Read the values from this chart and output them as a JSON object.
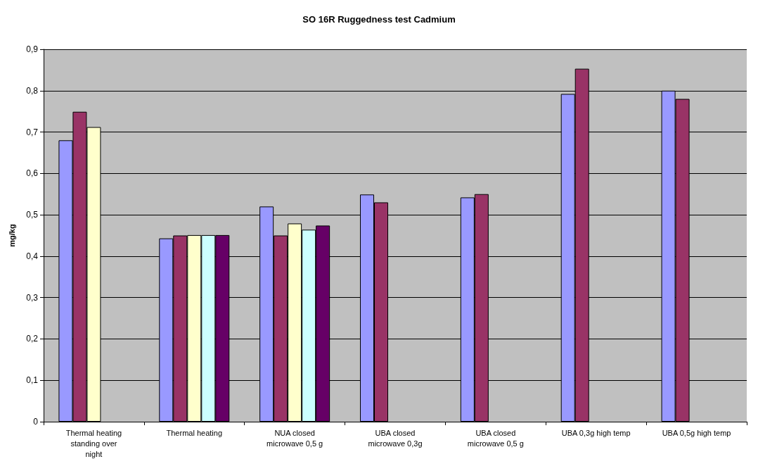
{
  "chart_data": {
    "type": "bar",
    "title": "SO 16R Ruggedness test Cadmium",
    "ylabel": "mg/kg",
    "categories": [
      "Thermal heating standing over night",
      "Thermal heating",
      "NUA closed microwave 0,5 g",
      "UBA closed microwave 0,3g",
      "UBA closed microwave 0,5 g",
      "UBA 0,3g high temp",
      "UBA 0,5g high temp"
    ],
    "series": [
      {
        "color": "#9999ff",
        "values": [
          0.68,
          0.443,
          0.52,
          0.549,
          0.542,
          0.792,
          0.8
        ]
      },
      {
        "color": "#993366",
        "values": [
          0.749,
          0.45,
          0.45,
          0.53,
          0.55,
          0.853,
          0.78
        ]
      },
      {
        "color": "#ffffcc",
        "values": [
          0.712,
          0.451,
          0.479,
          null,
          null,
          null,
          null
        ]
      },
      {
        "color": "#ccffff",
        "values": [
          null,
          0.451,
          0.464,
          null,
          null,
          null,
          null
        ]
      },
      {
        "color": "#660066",
        "values": [
          null,
          0.451,
          0.474,
          null,
          null,
          null,
          null
        ]
      }
    ],
    "ylim": [
      0,
      0.9
    ],
    "yticks": [
      0,
      {
        "value": 0.1,
        "label": "0,1"
      },
      {
        "value": 0.2,
        "label": "0,2"
      },
      {
        "value": 0.3,
        "label": "0,3"
      },
      {
        "value": 0.4,
        "label": "0,4"
      },
      {
        "value": 0.5,
        "label": "0,5"
      },
      {
        "value": 0.6,
        "label": "0,6"
      },
      {
        "value": 0.7,
        "label": "0,7"
      },
      {
        "value": 0.8,
        "label": "0,8"
      },
      {
        "value": 0.9,
        "label": "0,9"
      }
    ],
    "grid": "y"
  }
}
